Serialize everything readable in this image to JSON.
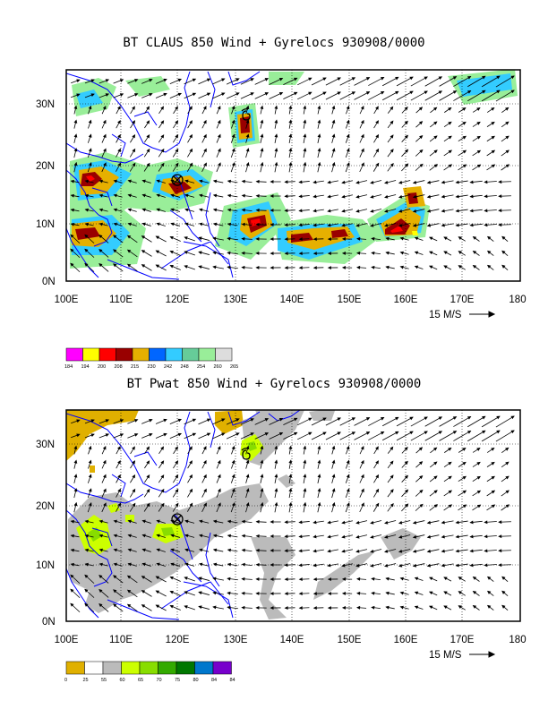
{
  "panels": [
    {
      "title": "BT CLAUS 850 Wind + Gyrelocs 930908/0000",
      "lat_labels": [
        "30N",
        "20N",
        "10N",
        "0N"
      ],
      "lon_labels": [
        "100E",
        "110E",
        "120E",
        "130E",
        "140E",
        "150E",
        "160E",
        "170E",
        "180"
      ],
      "scale_label": "15 M/S",
      "colorbar": {
        "colors": [
          "#ff00ff",
          "#ffff00",
          "#ff0000",
          "#990000",
          "#e6b000",
          "#0066ff",
          "#33ccff",
          "#66cc99",
          "#99ee99",
          "#dddddd"
        ],
        "labels": [
          "184",
          "194",
          "200",
          "208",
          "215",
          "230",
          "242",
          "248",
          "254",
          "260",
          "265"
        ]
      }
    },
    {
      "title": "BT Pwat 850 Wind + Gyrelocs 930908/0000",
      "lat_labels": [
        "30N",
        "20N",
        "10N",
        "0N"
      ],
      "lon_labels": [
        "100E",
        "110E",
        "120E",
        "130E",
        "140E",
        "150E",
        "160E",
        "170E",
        "180"
      ],
      "scale_label": "15 M/S",
      "colorbar": {
        "colors": [
          "#e0b000",
          "#ffffff",
          "#bbbbbb",
          "#ccff00",
          "#88dd00",
          "#33aa00",
          "#007700",
          "#0077cc",
          "#7700cc"
        ],
        "labels": [
          "0",
          "25",
          "55",
          "60",
          "65",
          "70",
          "75",
          "80",
          "84",
          "84"
        ]
      }
    }
  ],
  "colors": {
    "coast": "#0000ff",
    "frame": "#000000"
  },
  "icons": [
    "gyre-center-cross-circle-icon",
    "typhoon-symbol-icon",
    "reference-arrow-icon"
  ]
}
